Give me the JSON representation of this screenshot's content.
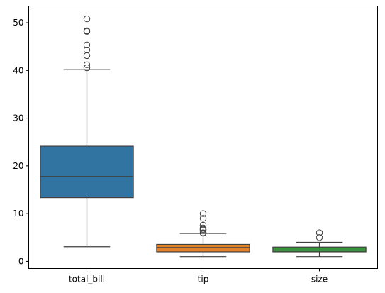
{
  "chart_data": {
    "type": "boxplot",
    "title": "",
    "xlabel": "",
    "ylabel": "",
    "ylim": [
      -1.5,
      53.5
    ],
    "yticks": [
      0,
      10,
      20,
      30,
      40,
      50
    ],
    "grid": false,
    "legend": "none",
    "categories": [
      "total_bill",
      "tip",
      "size"
    ],
    "boxes": [
      {
        "category": "total_bill",
        "color": "#3274a1",
        "whisker_low": 3.07,
        "q1": 13.35,
        "median": 17.8,
        "q3": 24.13,
        "whisker_high": 40.17,
        "outliers": [
          40.55,
          41.19,
          43.11,
          44.3,
          45.35,
          48.17,
          48.27,
          48.33,
          50.81
        ]
      },
      {
        "category": "tip",
        "color": "#e1812c",
        "whisker_low": 1.0,
        "q1": 2.0,
        "median": 2.9,
        "q3": 3.56,
        "whisker_high": 5.85,
        "outliers": [
          5.92,
          6.0,
          6.5,
          6.7,
          6.73,
          7.0,
          7.58,
          9.0,
          10.0
        ]
      },
      {
        "category": "size",
        "color": "#3a923a",
        "whisker_low": 1,
        "q1": 2,
        "median": 2,
        "q3": 3,
        "whisker_high": 4,
        "outliers": [
          5,
          6
        ]
      }
    ]
  }
}
